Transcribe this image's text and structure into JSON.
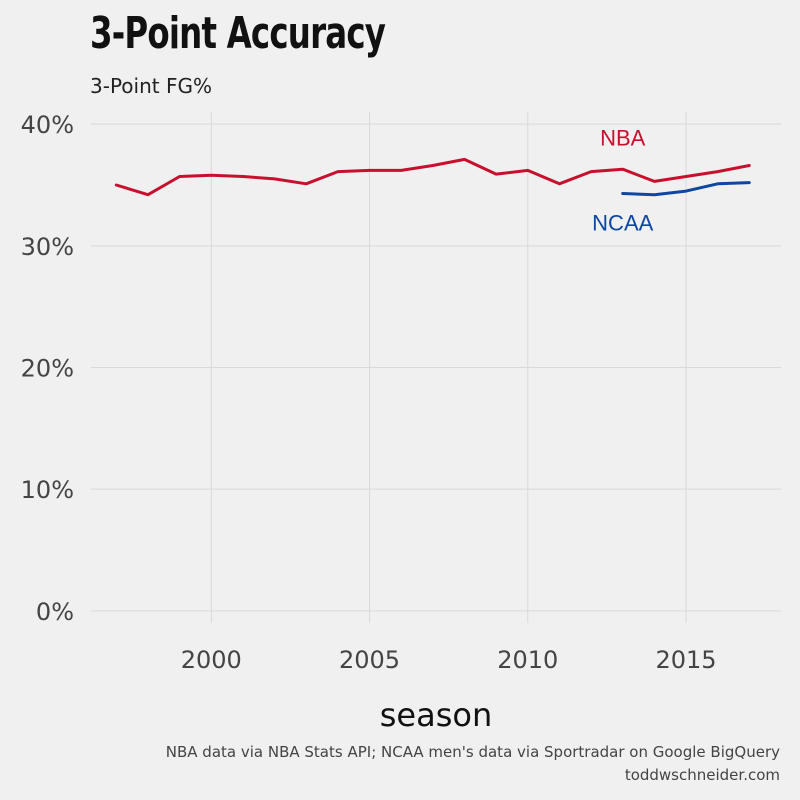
{
  "header": {
    "title": "3-Point Accuracy",
    "subtitle": "3-Point FG%"
  },
  "caption": {
    "line1": "NBA data via NBA Stats API; NCAA men's data via Sportradar on Google BigQuery",
    "line2": "toddwschneider.com"
  },
  "colors": {
    "background": "#f0f0f0",
    "grid": "#d9d9d9",
    "nba": "#c8102e",
    "ncaa": "#0d47a1"
  },
  "chart_data": {
    "type": "line",
    "title": "3-Point Accuracy",
    "subtitle": "3-Point FG%",
    "xlabel": "season",
    "ylabel": "",
    "xlim": [
      1996.2,
      2018.0
    ],
    "ylim": [
      -1.0,
      41.0
    ],
    "x_ticks": [
      2000,
      2005,
      2010,
      2015
    ],
    "x_tick_labels": [
      "2000",
      "2005",
      "2010",
      "2015"
    ],
    "y_ticks": [
      0,
      10,
      20,
      30,
      40
    ],
    "y_tick_labels": [
      "0%",
      "10%",
      "20%",
      "30%",
      "40%"
    ],
    "grid": true,
    "legend": "direct labels",
    "series": [
      {
        "name": "NBA",
        "color": "#c8102e",
        "x": [
          1997,
          1998,
          1999,
          2000,
          2001,
          2002,
          2003,
          2004,
          2005,
          2006,
          2007,
          2008,
          2009,
          2010,
          2011,
          2012,
          2013,
          2014,
          2015,
          2016,
          2017
        ],
        "y": [
          35.0,
          34.2,
          35.7,
          35.8,
          35.7,
          35.5,
          35.1,
          36.1,
          36.2,
          36.2,
          36.6,
          37.1,
          35.9,
          36.2,
          35.1,
          36.1,
          36.3,
          35.3,
          35.7,
          36.1,
          36.6
        ]
      },
      {
        "name": "NCAA",
        "color": "#0d47a1",
        "x": [
          2013,
          2014,
          2015,
          2016,
          2017
        ],
        "y": [
          34.3,
          34.2,
          34.5,
          35.1,
          35.2
        ]
      }
    ],
    "annotations": [
      {
        "text": "NBA",
        "x": 2013,
        "y": 38.9,
        "series": "NBA"
      },
      {
        "text": "NCAA",
        "x": 2013,
        "y": 31.9,
        "series": "NCAA"
      }
    ]
  }
}
